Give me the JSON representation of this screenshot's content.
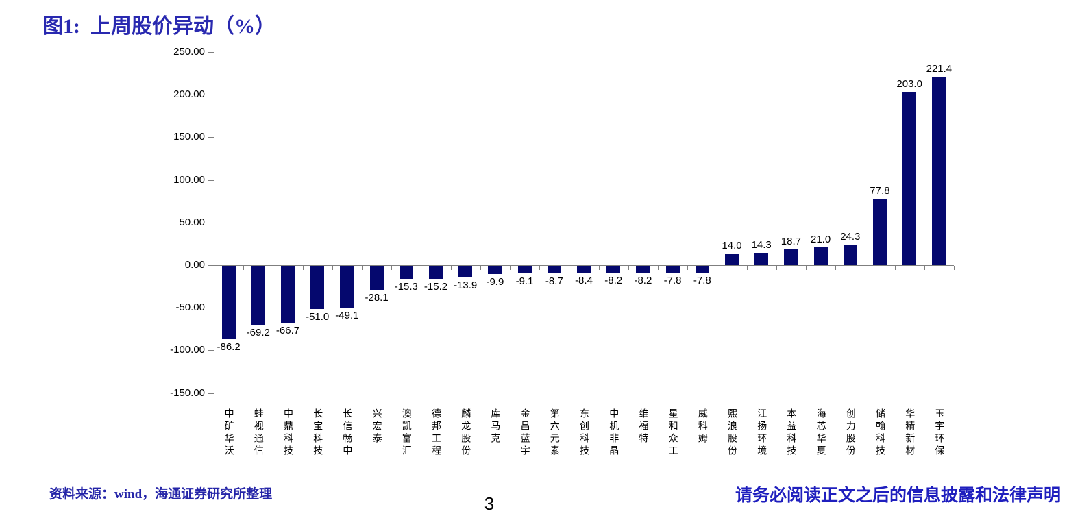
{
  "page": {
    "title": "图1:  上周股价异动（%）",
    "page_number": "3",
    "source_note": "资料来源：wind，海通证券研究所整理",
    "disclaimer": "请务必阅读正文之后的信息披露和法律声明"
  },
  "colors": {
    "title": "#2929B0",
    "bar": "#05086E",
    "source_text": "#2525A8",
    "disclaimer_text": "#1F1FBE",
    "axis": "#7f7f7f",
    "value_label": "#000000"
  },
  "chart_data": {
    "type": "bar",
    "title": "上周股价异动（%）",
    "categories": [
      "中矿华沃",
      "蛙视通信",
      "中鼎科技",
      "长宝科技",
      "长信畅中",
      "兴宏泰",
      "澳凯富汇",
      "德邦工程",
      "麟龙股份",
      "库马克",
      "金昌蓝宇",
      "第六元素",
      "东创科技",
      "中机非晶",
      "维福特",
      "星和众工",
      "威科姆",
      "熙浪股份",
      "江扬环境",
      "本益科技",
      "海芯华夏",
      "创力股份",
      "储翰科技",
      "华精新材",
      "玉宇环保"
    ],
    "values": [
      -86.2,
      -69.2,
      -66.7,
      -51.0,
      -49.1,
      -28.1,
      -15.3,
      -15.2,
      -13.9,
      -9.9,
      -9.1,
      -8.7,
      -8.4,
      -8.2,
      -8.2,
      -7.8,
      -7.8,
      14.0,
      14.3,
      18.7,
      21.0,
      24.3,
      77.8,
      203.0,
      221.4
    ],
    "y_ticks": [
      250,
      200,
      150,
      100,
      50,
      0,
      -50,
      -100,
      -150
    ],
    "ylim": [
      -150,
      250
    ],
    "xlabel": "",
    "ylabel": "",
    "grid": false,
    "legend": "none",
    "value_label_decimals": 1,
    "y_tick_decimals": 2
  }
}
